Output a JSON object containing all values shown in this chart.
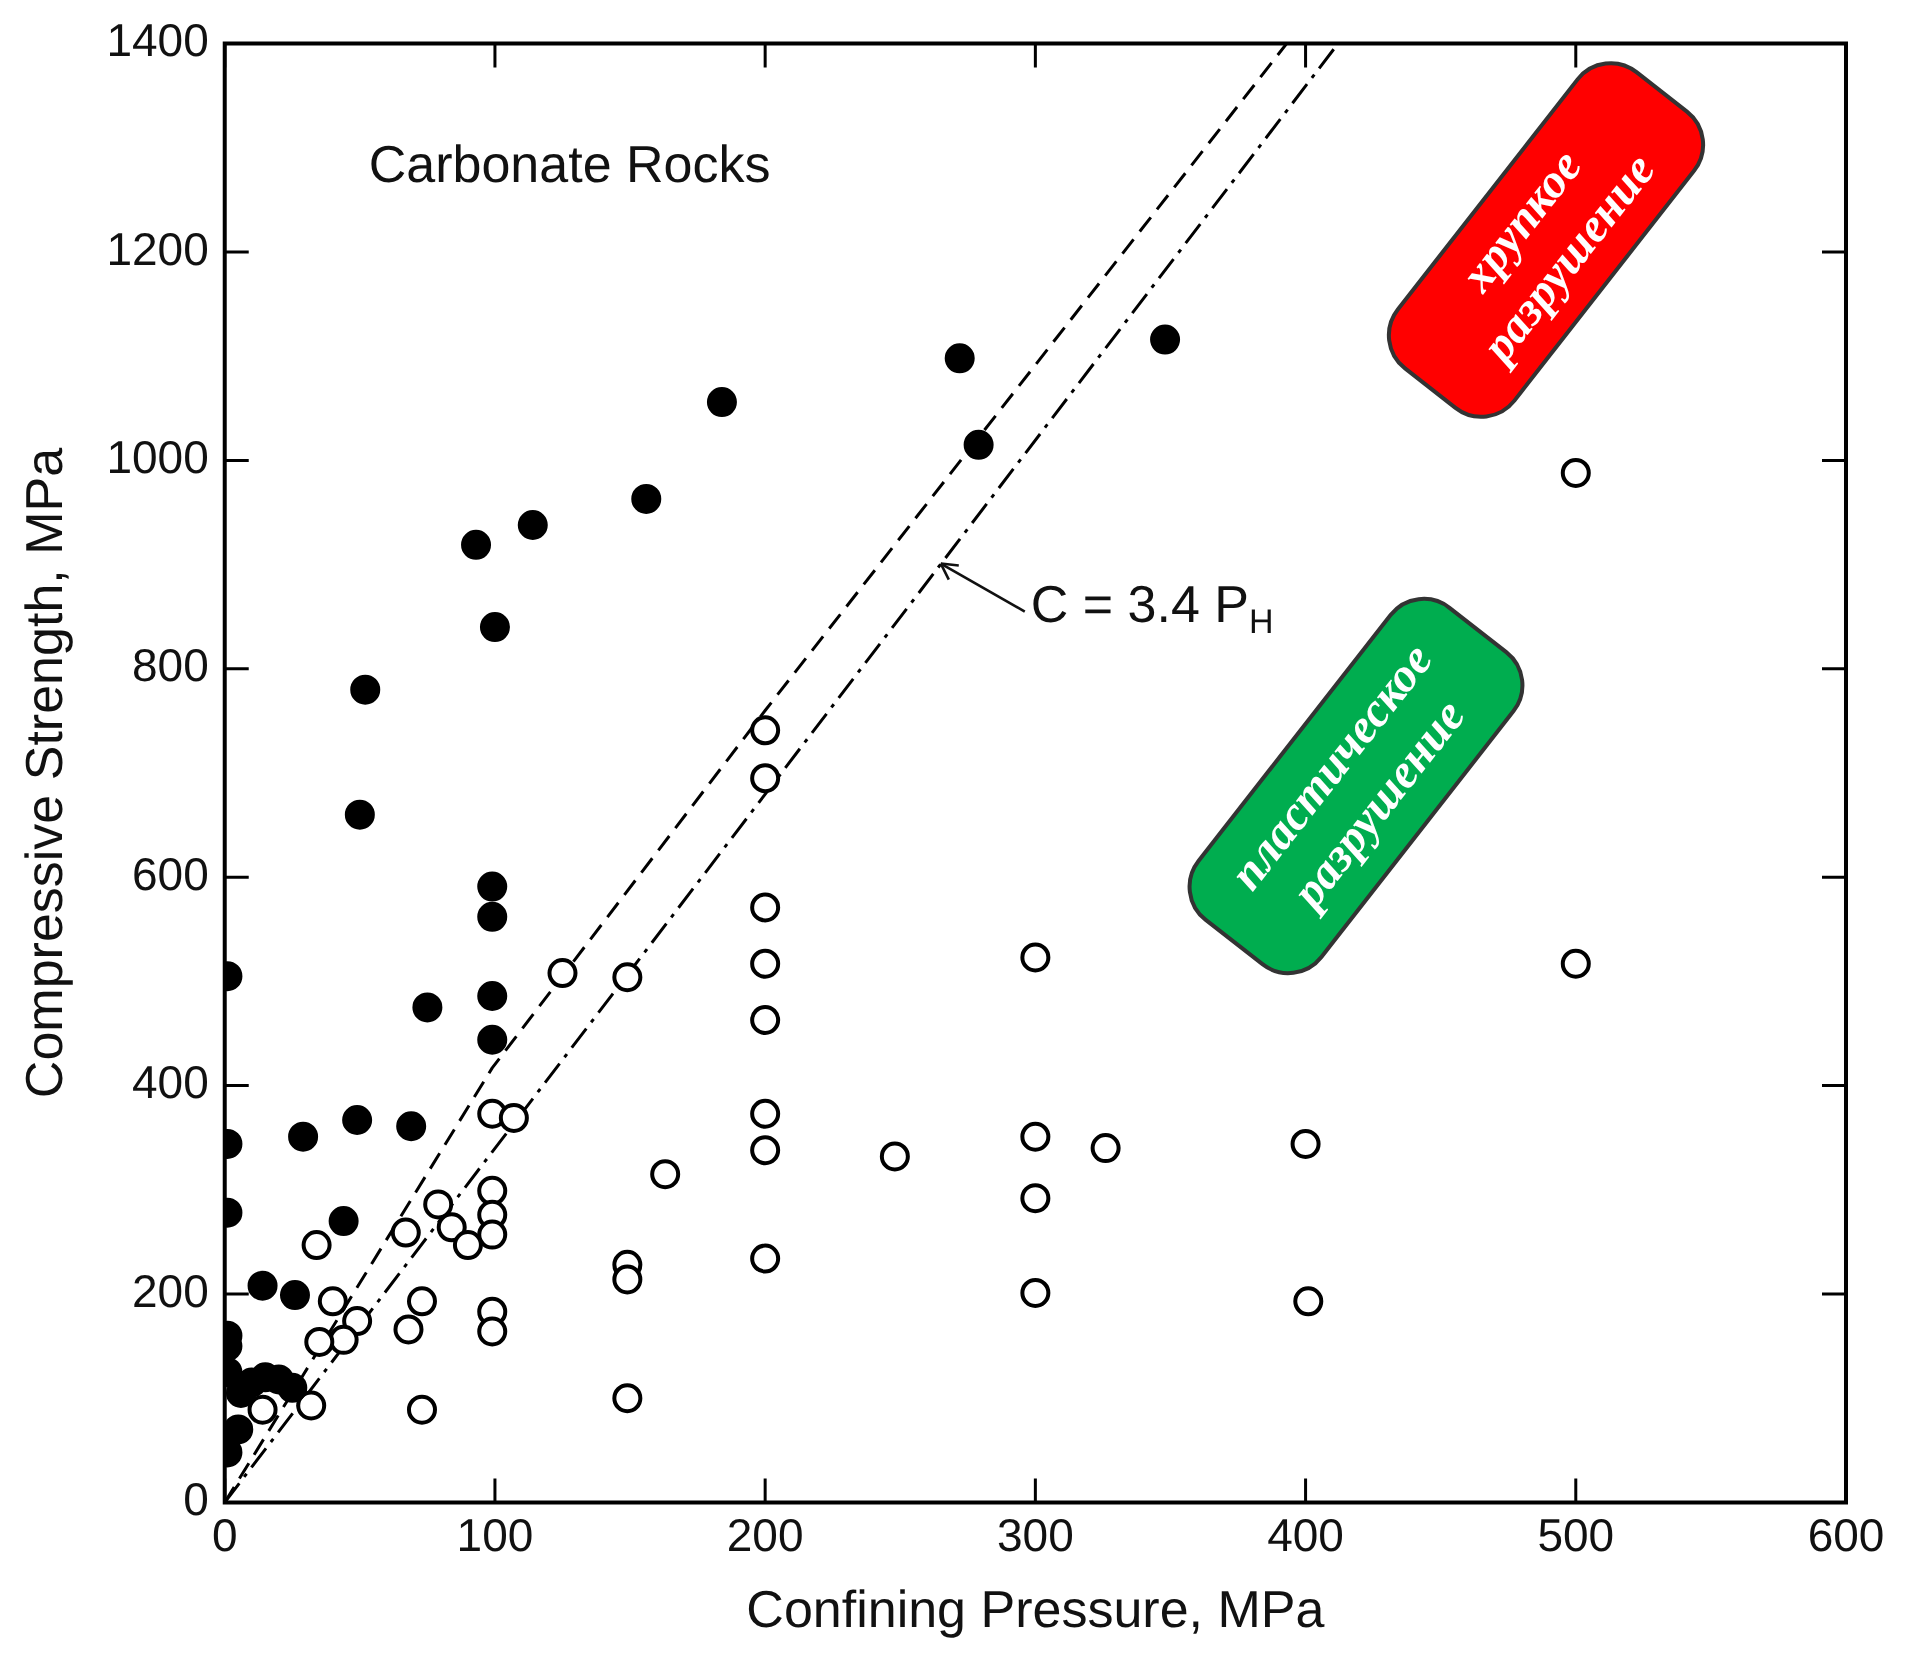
{
  "chart_data": {
    "type": "scatter",
    "title": "Carbonate Rocks",
    "xlabel": "Confining Pressure, MPa",
    "ylabel": "Compressive Strength, MPa",
    "xlim": [
      0,
      600
    ],
    "xticks": [
      0,
      100,
      200,
      300,
      400,
      500,
      600
    ],
    "ylim": [
      0,
      1400
    ],
    "yticks": [
      0,
      200,
      400,
      600,
      800,
      1000,
      1200,
      1400
    ],
    "grid": false,
    "marker": "circle",
    "annotations": [
      "хрупкое разрушение",
      "пластическое разрушение",
      {
        "text": "C = 3.4 P$_{H}$",
        "x": 265,
        "y": 901
      }
    ],
    "series": [
      {
        "color": "#000000",
        "x": [
          1,
          1,
          1,
          1,
          1,
          1,
          1,
          6,
          10,
          15,
          20,
          25,
          5,
          14,
          26,
          44,
          29,
          49,
          69,
          75,
          99,
          99,
          184,
          156,
          114,
          93,
          100,
          52,
          50,
          99,
          99,
          272,
          279,
          348
        ],
        "values": [
          505,
          344,
          278,
          48,
          125,
          150,
          160,
          105,
          115,
          120,
          118,
          110,
          70,
          208,
          199,
          270,
          351,
          367,
          361,
          475,
          486,
          444,
          1056,
          963,
          938,
          919,
          840,
          780,
          660,
          591,
          562,
          1098,
          1015,
          1116
        ]
      },
      {
        "marker": "circle-open",
        "color": "#000000",
        "x": [
          34,
          40,
          49,
          44,
          35,
          32,
          14,
          67,
          73,
          68,
          73,
          79,
          84,
          90,
          99,
          99,
          99,
          99,
          107,
          99,
          99,
          125,
          149,
          163,
          149,
          149,
          149,
          200,
          200,
          200,
          200,
          200,
          200,
          200,
          200,
          248,
          300,
          300,
          326,
          300,
          300,
          400,
          401,
          500,
          500
        ],
        "values": [
          247,
          193,
          174,
          156,
          154,
          93,
          89,
          259,
          193,
          166,
          89,
          286,
          264,
          247,
          299,
          276,
          257,
          373,
          369,
          183,
          164,
          508,
          504,
          315,
          228,
          214,
          100,
          741,
          695,
          571,
          517,
          463,
          373,
          338,
          234,
          332,
          523,
          351,
          340,
          292,
          201,
          344,
          193,
          517,
          988
        ]
      },
      {
        "type": "line",
        "marker": "none",
        "line_style": "dashed",
        "color": "#000000",
        "x": [
          0,
          99,
          200,
          393
        ],
        "values": [
          0,
          417,
          760,
          1400
        ]
      },
      {
        "type": "line",
        "marker": "none",
        "line_style": "dotted",
        "color": "#000000",
        "x": [
          0,
          412
        ],
        "values": [
          0,
          1400
        ]
      }
    ]
  }
}
